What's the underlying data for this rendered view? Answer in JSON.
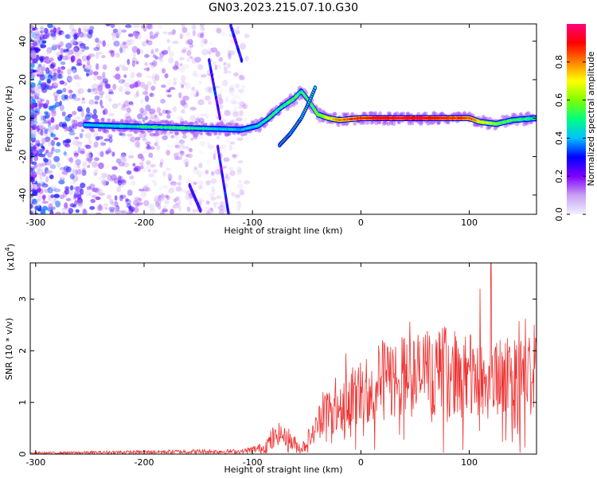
{
  "title": "GN03.2023.215.07.10.G30",
  "colorbar": {
    "label": "Normalized spectral amplitude",
    "ticks": [
      "0.0",
      "0.2",
      "0.4",
      "0.6",
      "0.8"
    ],
    "tick_values": [
      0.0,
      0.2,
      0.4,
      0.6,
      0.8
    ],
    "range": [
      0,
      1
    ],
    "colormap": [
      "#f0f0ff",
      "#c8a0f0",
      "#8000ff",
      "#0000ff",
      "#00c0ff",
      "#00ff80",
      "#80ff00",
      "#ffff00",
      "#ff8000",
      "#ff0000",
      "#ff0080"
    ]
  },
  "chart_data": [
    {
      "type": "heatmap",
      "name": "spectrogram",
      "xlabel": "Height of straight line (km)",
      "ylabel": "Frequency (Hz)",
      "xlim": [
        -305,
        162
      ],
      "ylim": [
        -50,
        49
      ],
      "xticks": [
        -300,
        -200,
        -100,
        0,
        100
      ],
      "xtick_labels": [
        "-300",
        "-200",
        "-100",
        "0",
        "100"
      ],
      "yticks": [
        -40,
        -20,
        0,
        20,
        40
      ],
      "ytick_labels": [
        "-40",
        "-20",
        "0",
        "20",
        "40"
      ],
      "ridge": [
        {
          "x": -255,
          "y": -3.5
        },
        {
          "x": -230,
          "y": -4
        },
        {
          "x": -200,
          "y": -4.5
        },
        {
          "x": -170,
          "y": -5
        },
        {
          "x": -140,
          "y": -5.5
        },
        {
          "x": -110,
          "y": -6
        },
        {
          "x": -95,
          "y": -4
        },
        {
          "x": -85,
          "y": 0
        },
        {
          "x": -75,
          "y": 5
        },
        {
          "x": -62,
          "y": 10
        },
        {
          "x": -55,
          "y": 14
        },
        {
          "x": -48,
          "y": 9
        },
        {
          "x": -40,
          "y": 2
        },
        {
          "x": -30,
          "y": 0
        },
        {
          "x": -20,
          "y": -1
        },
        {
          "x": 0,
          "y": 0
        },
        {
          "x": 20,
          "y": 0
        },
        {
          "x": 40,
          "y": 0
        },
        {
          "x": 60,
          "y": 0
        },
        {
          "x": 80,
          "y": 0
        },
        {
          "x": 100,
          "y": 0
        },
        {
          "x": 110,
          "y": -2
        },
        {
          "x": 125,
          "y": -3
        },
        {
          "x": 140,
          "y": -1
        },
        {
          "x": 162,
          "y": 0
        }
      ],
      "ridge_intensity": [
        0.4,
        0.45,
        0.5,
        0.55,
        0.45,
        0.4,
        0.45,
        0.5,
        0.5,
        0.55,
        0.5,
        0.55,
        0.6,
        0.7,
        0.8,
        0.9,
        0.95,
        0.95,
        0.95,
        0.9,
        0.85,
        0.7,
        0.6,
        0.55,
        0.5
      ],
      "secondary_ridge": [
        {
          "x": -75,
          "y": -14
        },
        {
          "x": -65,
          "y": -8
        },
        {
          "x": -55,
          "y": 0
        },
        {
          "x": -48,
          "y": 8
        },
        {
          "x": -42,
          "y": 16
        }
      ],
      "streaks": [
        [
          {
            "x": -140,
            "y": 30
          },
          {
            "x": -130,
            "y": 0
          }
        ],
        [
          {
            "x": -120,
            "y": 48
          },
          {
            "x": -110,
            "y": 30
          }
        ],
        [
          {
            "x": -132,
            "y": -15
          },
          {
            "x": -122,
            "y": -50
          }
        ],
        [
          {
            "x": -158,
            "y": -35
          },
          {
            "x": -148,
            "y": -48
          }
        ]
      ],
      "noise_region": {
        "x": [
          -305,
          -105
        ],
        "density": "high to low"
      }
    },
    {
      "type": "line",
      "name": "snr",
      "xlabel": "Height of straight line (km)",
      "ylabel": "SNR (10 * v/v)",
      "scale_note": "(x10",
      "scale_exponent": "4",
      "xlim": [
        -305,
        162
      ],
      "ylim": [
        0,
        3.7
      ],
      "xticks": [
        -300,
        -200,
        -100,
        0,
        100
      ],
      "xtick_labels": [
        "-300",
        "-200",
        "-100",
        "0",
        "100"
      ],
      "yticks": [
        0,
        1,
        2,
        3
      ],
      "ytick_labels": [
        "0",
        "1",
        "2",
        "3"
      ],
      "color": "#ee3333",
      "envelope": [
        {
          "x": -305,
          "y": 0.02
        },
        {
          "x": -250,
          "y": 0.03
        },
        {
          "x": -200,
          "y": 0.04
        },
        {
          "x": -150,
          "y": 0.05
        },
        {
          "x": -110,
          "y": 0.05
        },
        {
          "x": -90,
          "y": 0.12
        },
        {
          "x": -75,
          "y": 0.4
        },
        {
          "x": -65,
          "y": 0.25
        },
        {
          "x": -55,
          "y": 0.1
        },
        {
          "x": -45,
          "y": 0.35
        },
        {
          "x": -35,
          "y": 0.8
        },
        {
          "x": -25,
          "y": 0.9
        },
        {
          "x": -15,
          "y": 1.0
        },
        {
          "x": 0,
          "y": 1.2
        },
        {
          "x": 20,
          "y": 1.4
        },
        {
          "x": 40,
          "y": 1.5
        },
        {
          "x": 60,
          "y": 1.55
        },
        {
          "x": 80,
          "y": 1.6
        },
        {
          "x": 100,
          "y": 1.5
        },
        {
          "x": 120,
          "y": 1.4
        },
        {
          "x": 140,
          "y": 1.5
        },
        {
          "x": 162,
          "y": 1.5
        }
      ],
      "peaks": [
        {
          "x": -35,
          "y": 1.2
        },
        {
          "x": -14,
          "y": 1.95
        },
        {
          "x": 22,
          "y": 2.1
        },
        {
          "x": 78,
          "y": 2.4
        },
        {
          "x": 110,
          "y": 3.2
        },
        {
          "x": 120,
          "y": 3.7
        },
        {
          "x": 160,
          "y": 2.5
        }
      ]
    }
  ]
}
